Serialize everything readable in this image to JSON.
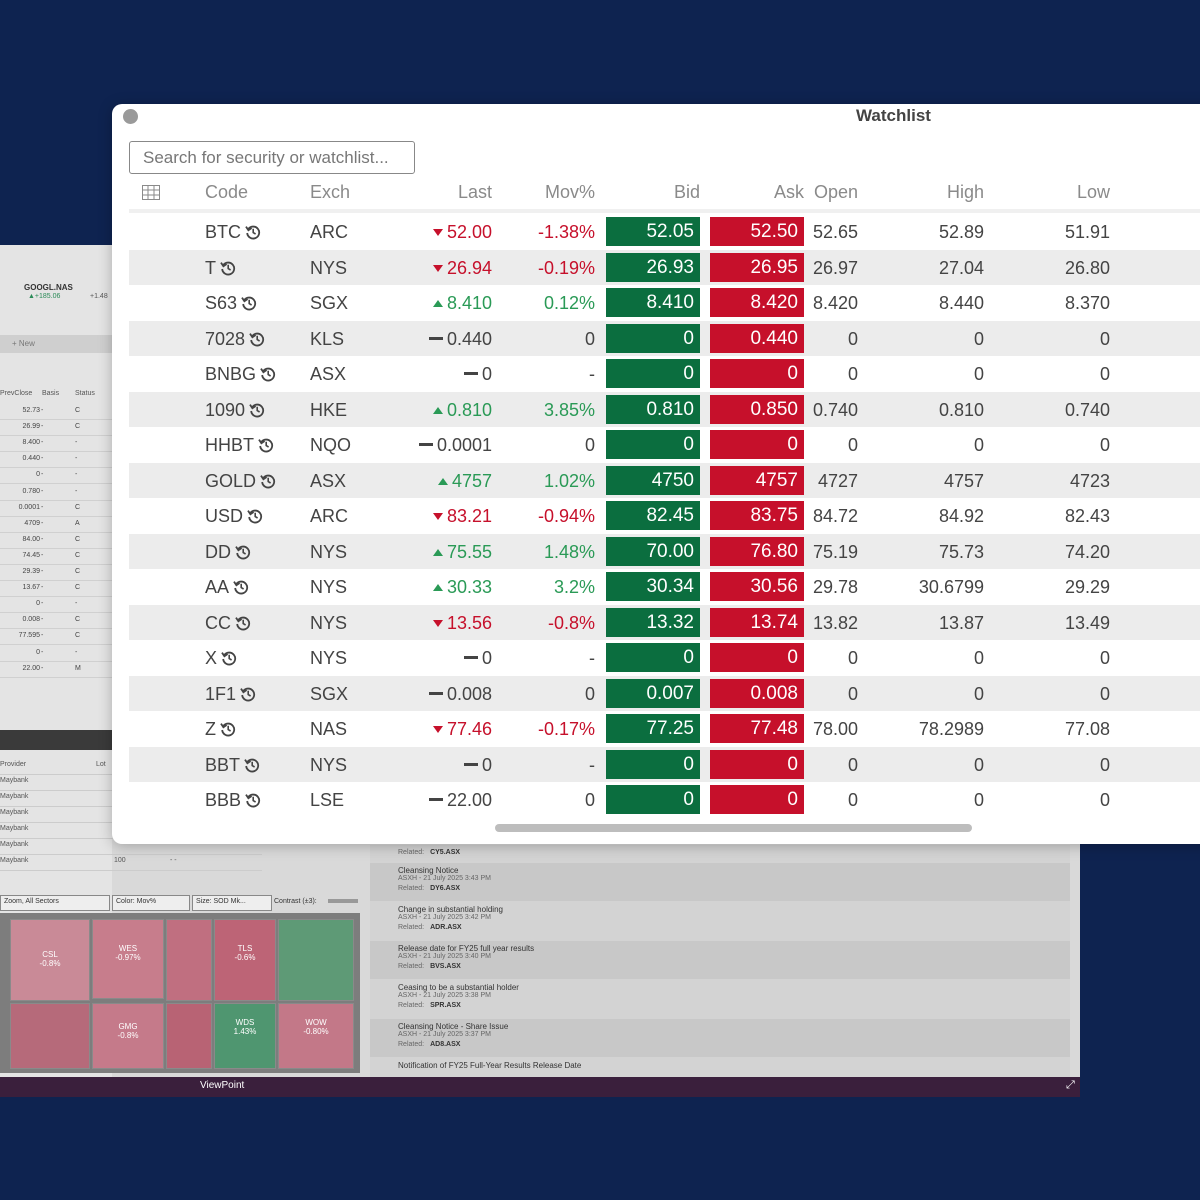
{
  "background_app": {
    "quote": {
      "symbol": "GOOGL.NAS",
      "change": "▲+185.06",
      "change2": "+1.48"
    },
    "new_button": "+ New",
    "columns": {
      "prev_close": "PrevClose",
      "basis": "Basis",
      "status": "Status"
    },
    "rows": [
      {
        "prev": "52.73",
        "basis": "C"
      },
      {
        "prev": "26.99",
        "basis": "C"
      },
      {
        "prev": "8.400",
        "basis": "-"
      },
      {
        "prev": "0.440",
        "basis": "-"
      },
      {
        "prev": "0",
        "basis": "-"
      },
      {
        "prev": "0.780",
        "basis": "-"
      },
      {
        "prev": "0.0001",
        "basis": "C"
      },
      {
        "prev": "4709",
        "basis": "A"
      },
      {
        "prev": "84.00",
        "basis": "C"
      },
      {
        "prev": "74.45",
        "basis": "C"
      },
      {
        "prev": "29.39",
        "basis": "C"
      },
      {
        "prev": "13.67",
        "basis": "C"
      },
      {
        "prev": "0",
        "basis": "-"
      },
      {
        "prev": "0.008",
        "basis": "C"
      },
      {
        "prev": "77.595",
        "basis": "C"
      },
      {
        "prev": "0",
        "basis": "-"
      },
      {
        "prev": "22.00",
        "basis": "M"
      }
    ],
    "provider_header": "Provider",
    "lot_header": "Lot",
    "providers": [
      "Maybank",
      "Maybank",
      "Maybank",
      "Maybank",
      "Maybank",
      "Maybank"
    ],
    "last_lot": "100",
    "last_lot_dashes": "- -",
    "controls": {
      "zoom": "Zoom, All Sectors",
      "color": "Color: Mov%",
      "size": "Size: SOD Mk...",
      "contrast": "Contrast (±3):"
    },
    "heatmap": [
      {
        "name": "CSL",
        "pct": "-0.8%"
      },
      {
        "name": "WES",
        "pct": "-0.97%"
      },
      {
        "name": "TLS",
        "pct": "-0.6%"
      },
      {
        "name": "GMG",
        "pct": "-0.8%"
      },
      {
        "name": "WDS",
        "pct": "1.43%"
      },
      {
        "name": "WOW",
        "pct": "-0.80%"
      }
    ],
    "news": [
      {
        "headline": "",
        "meta": "",
        "related": "CY5.ASX"
      },
      {
        "headline": "Cleansing Notice",
        "meta": "ASXH - 21 July 2025 3:43 PM",
        "related": "DY6.ASX"
      },
      {
        "headline": "Change in substantial holding",
        "meta": "ASXH - 21 July 2025 3:42 PM",
        "related": "ADR.ASX"
      },
      {
        "headline": "Release date for FY25 full year results",
        "meta": "ASXH - 21 July 2025 3:40 PM",
        "related": "BVS.ASX"
      },
      {
        "headline": "Ceasing to be a substantial holder",
        "meta": "ASXH - 21 July 2025 3:38 PM",
        "related": "SPR.ASX"
      },
      {
        "headline": "Cleansing Notice - Share Issue",
        "meta": "ASXH - 21 July 2025 3:37 PM",
        "related": "AD8.ASX"
      },
      {
        "headline": "Notification of FY25 Full-Year Results Release Date",
        "meta": "",
        "related": ""
      }
    ],
    "related_label": "Related:",
    "footer_title": "ViewPoint"
  },
  "watchlist": {
    "title": "Watchlist",
    "search_placeholder": "Search for security or watchlist...",
    "headers": {
      "code": "Code",
      "exch": "Exch",
      "last": "Last",
      "mov": "Mov%",
      "bid": "Bid",
      "ask": "Ask",
      "open": "Open",
      "high": "High",
      "low": "Low"
    },
    "colors": {
      "bid": "#0b6e3f",
      "ask": "#c6102b",
      "up": "#2a9a56",
      "down": "#c6102b"
    },
    "rows": [
      {
        "code": "BTC",
        "exch": "ARC",
        "dir": "down",
        "last": "52.00",
        "mov": "-1.38%",
        "bid": "52.05",
        "ask": "52.50",
        "open": "52.65",
        "high": "52.89",
        "low": "51.91"
      },
      {
        "code": "T",
        "exch": "NYS",
        "dir": "down",
        "last": "26.94",
        "mov": "-0.19%",
        "bid": "26.93",
        "ask": "26.95",
        "open": "26.97",
        "high": "27.04",
        "low": "26.80"
      },
      {
        "code": "S63",
        "exch": "SGX",
        "dir": "up",
        "last": "8.410",
        "mov": "0.12%",
        "bid": "8.410",
        "ask": "8.420",
        "open": "8.420",
        "high": "8.440",
        "low": "8.370"
      },
      {
        "code": "7028",
        "exch": "KLS",
        "dir": "flat",
        "last": "0.440",
        "mov": "0",
        "bid": "0",
        "ask": "0.440",
        "open": "0",
        "high": "0",
        "low": "0"
      },
      {
        "code": "BNBG",
        "exch": "ASX",
        "dir": "flat",
        "last": "0",
        "mov": "-",
        "bid": "0",
        "ask": "0",
        "open": "0",
        "high": "0",
        "low": "0"
      },
      {
        "code": "1090",
        "exch": "HKE",
        "dir": "up",
        "last": "0.810",
        "mov": "3.85%",
        "bid": "0.810",
        "ask": "0.850",
        "open": "0.740",
        "high": "0.810",
        "low": "0.740"
      },
      {
        "code": "HHBT",
        "exch": "NQO",
        "dir": "flat",
        "last": "0.0001",
        "mov": "0",
        "bid": "0",
        "ask": "0",
        "open": "0",
        "high": "0",
        "low": "0"
      },
      {
        "code": "GOLD",
        "exch": "ASX",
        "dir": "up",
        "last": "4757",
        "mov": "1.02%",
        "bid": "4750",
        "ask": "4757",
        "open": "4727",
        "high": "4757",
        "low": "4723"
      },
      {
        "code": "USD",
        "exch": "ARC",
        "dir": "down",
        "last": "83.21",
        "mov": "-0.94%",
        "bid": "82.45",
        "ask": "83.75",
        "open": "84.72",
        "high": "84.92",
        "low": "82.43"
      },
      {
        "code": "DD",
        "exch": "NYS",
        "dir": "up",
        "last": "75.55",
        "mov": "1.48%",
        "bid": "70.00",
        "ask": "76.80",
        "open": "75.19",
        "high": "75.73",
        "low": "74.20"
      },
      {
        "code": "AA",
        "exch": "NYS",
        "dir": "up",
        "last": "30.33",
        "mov": "3.2%",
        "bid": "30.34",
        "ask": "30.56",
        "open": "29.78",
        "high": "30.6799",
        "low": "29.29"
      },
      {
        "code": "CC",
        "exch": "NYS",
        "dir": "down",
        "last": "13.56",
        "mov": "-0.8%",
        "bid": "13.32",
        "ask": "13.74",
        "open": "13.82",
        "high": "13.87",
        "low": "13.49"
      },
      {
        "code": "X",
        "exch": "NYS",
        "dir": "flat",
        "last": "0",
        "mov": "-",
        "bid": "0",
        "ask": "0",
        "open": "0",
        "high": "0",
        "low": "0"
      },
      {
        "code": "1F1",
        "exch": "SGX",
        "dir": "flat",
        "last": "0.008",
        "mov": "0",
        "bid": "0.007",
        "ask": "0.008",
        "open": "0",
        "high": "0",
        "low": "0"
      },
      {
        "code": "Z",
        "exch": "NAS",
        "dir": "down",
        "last": "77.46",
        "mov": "-0.17%",
        "bid": "77.25",
        "ask": "77.48",
        "open": "78.00",
        "high": "78.2989",
        "low": "77.08"
      },
      {
        "code": "BBT",
        "exch": "NYS",
        "dir": "flat",
        "last": "0",
        "mov": "-",
        "bid": "0",
        "ask": "0",
        "open": "0",
        "high": "0",
        "low": "0"
      },
      {
        "code": "BBB",
        "exch": "LSE",
        "dir": "flat",
        "last": "22.00",
        "mov": "0",
        "bid": "0",
        "ask": "0",
        "open": "0",
        "high": "0",
        "low": "0"
      }
    ]
  }
}
